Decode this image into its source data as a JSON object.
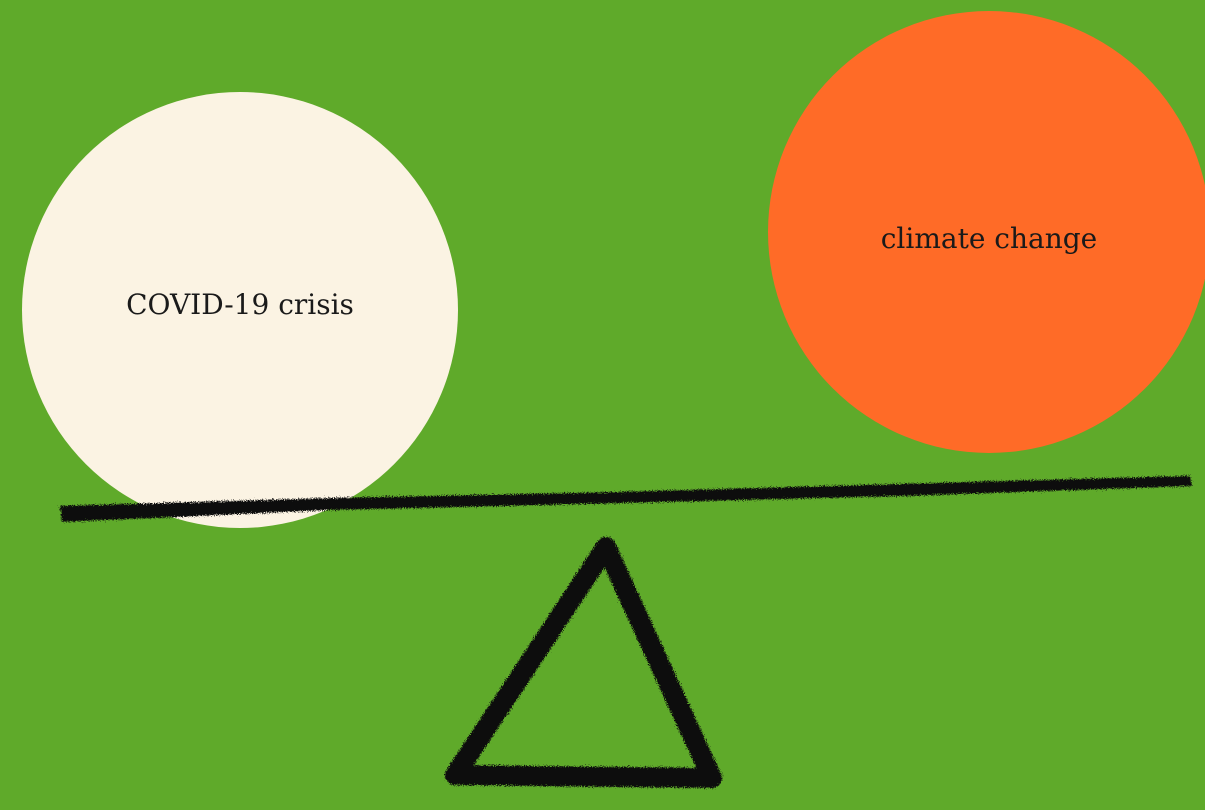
{
  "balance": {
    "left_weight": {
      "label": "COVID-19 crisis",
      "color": "#fbf3e3"
    },
    "right_weight": {
      "label": "climate change",
      "color": "#ff6b27"
    }
  },
  "colors": {
    "background": "#5faa2a",
    "ink": "#111111"
  }
}
